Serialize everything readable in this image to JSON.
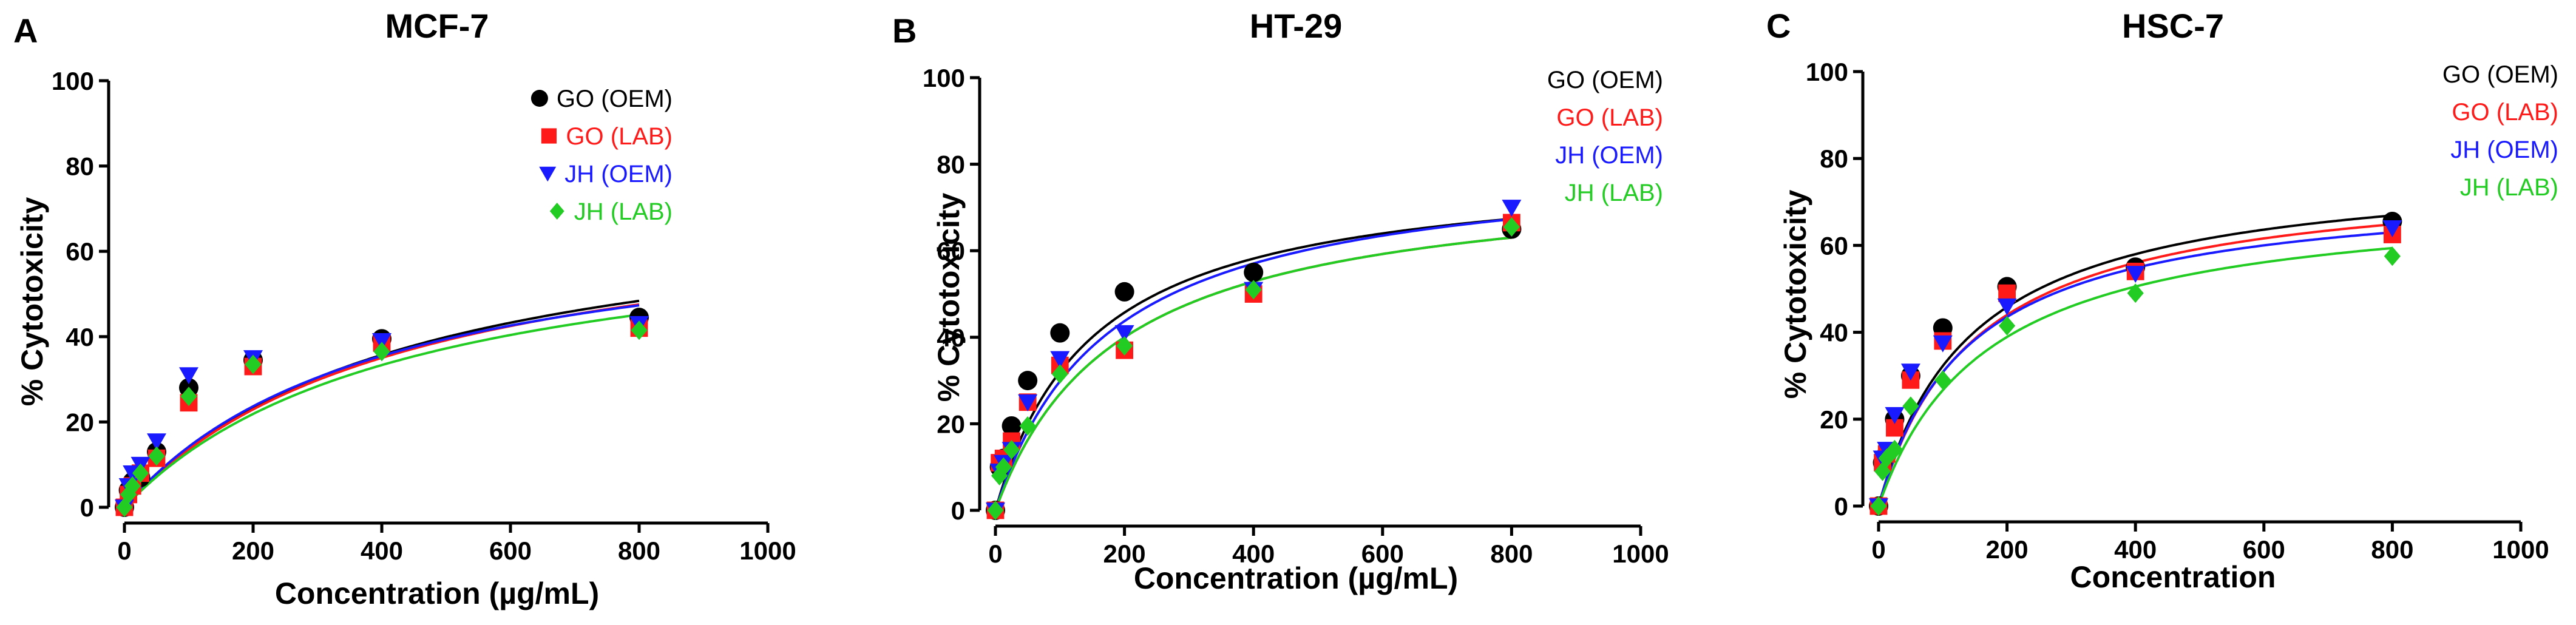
{
  "colors": {
    "GO (OEM)": "#000000",
    "GO (LAB)": "#ff1a1a",
    "JH (OEM)": "#1a1aff",
    "JH (LAB)": "#22cc22"
  },
  "chart_data": [
    {
      "type": "scatter",
      "letter": "A",
      "title": "MCF-7",
      "xlabel": "Concentration (µg/mL)",
      "ylabel": "% Cytotoxicity",
      "xlim": [
        0,
        1000
      ],
      "ylim": [
        0,
        100
      ],
      "xticks": [
        0,
        200,
        400,
        600,
        800,
        1000
      ],
      "yticks": [
        0,
        20,
        40,
        60,
        80,
        100
      ],
      "legend": [
        {
          "label": "GO (OEM)",
          "marker": "circle",
          "show_marker": true
        },
        {
          "label": "GO (LAB)",
          "marker": "square",
          "show_marker": true
        },
        {
          "label": "JH (OEM)",
          "marker": "triangle-down",
          "show_marker": true
        },
        {
          "label": "JH (LAB)",
          "marker": "diamond",
          "show_marker": true
        }
      ],
      "x": [
        0,
        6.25,
        12.5,
        25,
        50,
        100,
        200,
        400,
        800
      ],
      "series": [
        {
          "name": "GO (OEM)",
          "marker": "circle",
          "values": [
            0,
            4,
            6,
            7,
            13,
            28,
            34.5,
            39.5,
            44.5
          ],
          "fit": {
            "bmax": 75,
            "kd": 440
          }
        },
        {
          "name": "GO (LAB)",
          "marker": "square",
          "values": [
            0,
            3,
            5,
            8,
            11.5,
            24.5,
            33,
            38.5,
            42
          ],
          "fit": {
            "bmax": 74,
            "kd": 445
          }
        },
        {
          "name": "JH (OEM)",
          "marker": "triangle-down",
          "values": [
            0,
            5,
            8,
            10,
            15.5,
            31,
            35,
            39,
            43
          ],
          "fit": {
            "bmax": 71,
            "kd": 400
          }
        },
        {
          "name": "JH (LAB)",
          "marker": "diamond",
          "values": [
            0,
            3,
            5,
            8,
            12,
            26,
            33.5,
            36.5,
            41.5
          ],
          "fit": {
            "bmax": 70,
            "kd": 440
          }
        }
      ]
    },
    {
      "type": "scatter",
      "letter": "B",
      "title": "HT-29",
      "xlabel": "Concentration (µg/mL)",
      "ylabel": "% Cytotoxicity",
      "xlim": [
        0,
        1000
      ],
      "ylim": [
        0,
        100
      ],
      "xticks": [
        0,
        200,
        400,
        600,
        800,
        1000
      ],
      "yticks": [
        0,
        20,
        40,
        60,
        80,
        100
      ],
      "legend": [
        {
          "label": "GO (OEM)",
          "marker": "circle",
          "show_marker": false
        },
        {
          "label": "GO (LAB)",
          "marker": "square",
          "show_marker": false
        },
        {
          "label": "JH (OEM)",
          "marker": "triangle-down",
          "show_marker": false
        },
        {
          "label": "JH (LAB)",
          "marker": "diamond",
          "show_marker": false
        }
      ],
      "x": [
        0,
        6.25,
        12.5,
        25,
        50,
        100,
        200,
        400,
        800
      ],
      "series": [
        {
          "name": "GO (OEM)",
          "marker": "circle",
          "values": [
            0,
            10,
            12,
            19.5,
            30,
            41,
            50.5,
            55,
            65
          ],
          "fit": {
            "bmax": 80,
            "kd": 150
          }
        },
        {
          "name": "GO (LAB)",
          "marker": "square",
          "values": [
            0,
            11,
            12,
            16,
            25,
            33.5,
            37,
            50,
            66.5
          ],
          "fit": {
            "bmax": 78,
            "kd": 190
          }
        },
        {
          "name": "JH (OEM)",
          "marker": "triangle-down",
          "values": [
            0,
            9,
            11,
            14,
            25,
            35,
            41,
            51,
            70
          ],
          "fit": {
            "bmax": 82,
            "kd": 175
          }
        },
        {
          "name": "JH (LAB)",
          "marker": "diamond",
          "values": [
            0,
            8,
            10,
            14,
            19.5,
            31.5,
            38,
            51,
            65.5
          ],
          "fit": {
            "bmax": 78,
            "kd": 190
          }
        }
      ]
    },
    {
      "type": "scatter",
      "letter": "C",
      "title": "HSC-7",
      "xlabel": "Concentration",
      "ylabel": "% Cytotoxicity",
      "xlim": [
        0,
        1000
      ],
      "ylim": [
        0,
        100
      ],
      "xticks": [
        0,
        200,
        400,
        600,
        800,
        1000
      ],
      "yticks": [
        0,
        20,
        40,
        60,
        80,
        100
      ],
      "legend": [
        {
          "label": "GO (OEM)",
          "marker": "circle",
          "show_marker": false
        },
        {
          "label": "GO (LAB)",
          "marker": "square",
          "show_marker": false
        },
        {
          "label": "JH (OEM)",
          "marker": "triangle-down",
          "show_marker": false
        },
        {
          "label": "JH (LAB)",
          "marker": "diamond",
          "show_marker": false
        }
      ],
      "x": [
        0,
        6.25,
        12.5,
        25,
        50,
        100,
        200,
        400,
        800
      ],
      "series": [
        {
          "name": "GO (OEM)",
          "marker": "circle",
          "values": [
            0,
            10,
            12,
            20,
            30,
            41,
            50.5,
            55,
            65.5
          ],
          "fit": {
            "bmax": 79,
            "kd": 145
          }
        },
        {
          "name": "GO (LAB)",
          "marker": "square",
          "values": [
            0,
            10,
            12,
            18,
            29,
            38,
            49,
            54,
            62.5
          ],
          "fit": {
            "bmax": 77,
            "kd": 150
          }
        },
        {
          "name": "JH (OEM)",
          "marker": "triangle-down",
          "values": [
            0,
            11,
            13,
            21,
            31,
            37.5,
            46,
            53.5,
            64
          ],
          "fit": {
            "bmax": 74,
            "kd": 140
          }
        },
        {
          "name": "JH (LAB)",
          "marker": "diamond",
          "values": [
            0,
            8,
            11,
            13,
            23,
            29,
            41.5,
            49,
            57.5
          ],
          "fit": {
            "bmax": 72,
            "kd": 170
          }
        }
      ]
    }
  ]
}
